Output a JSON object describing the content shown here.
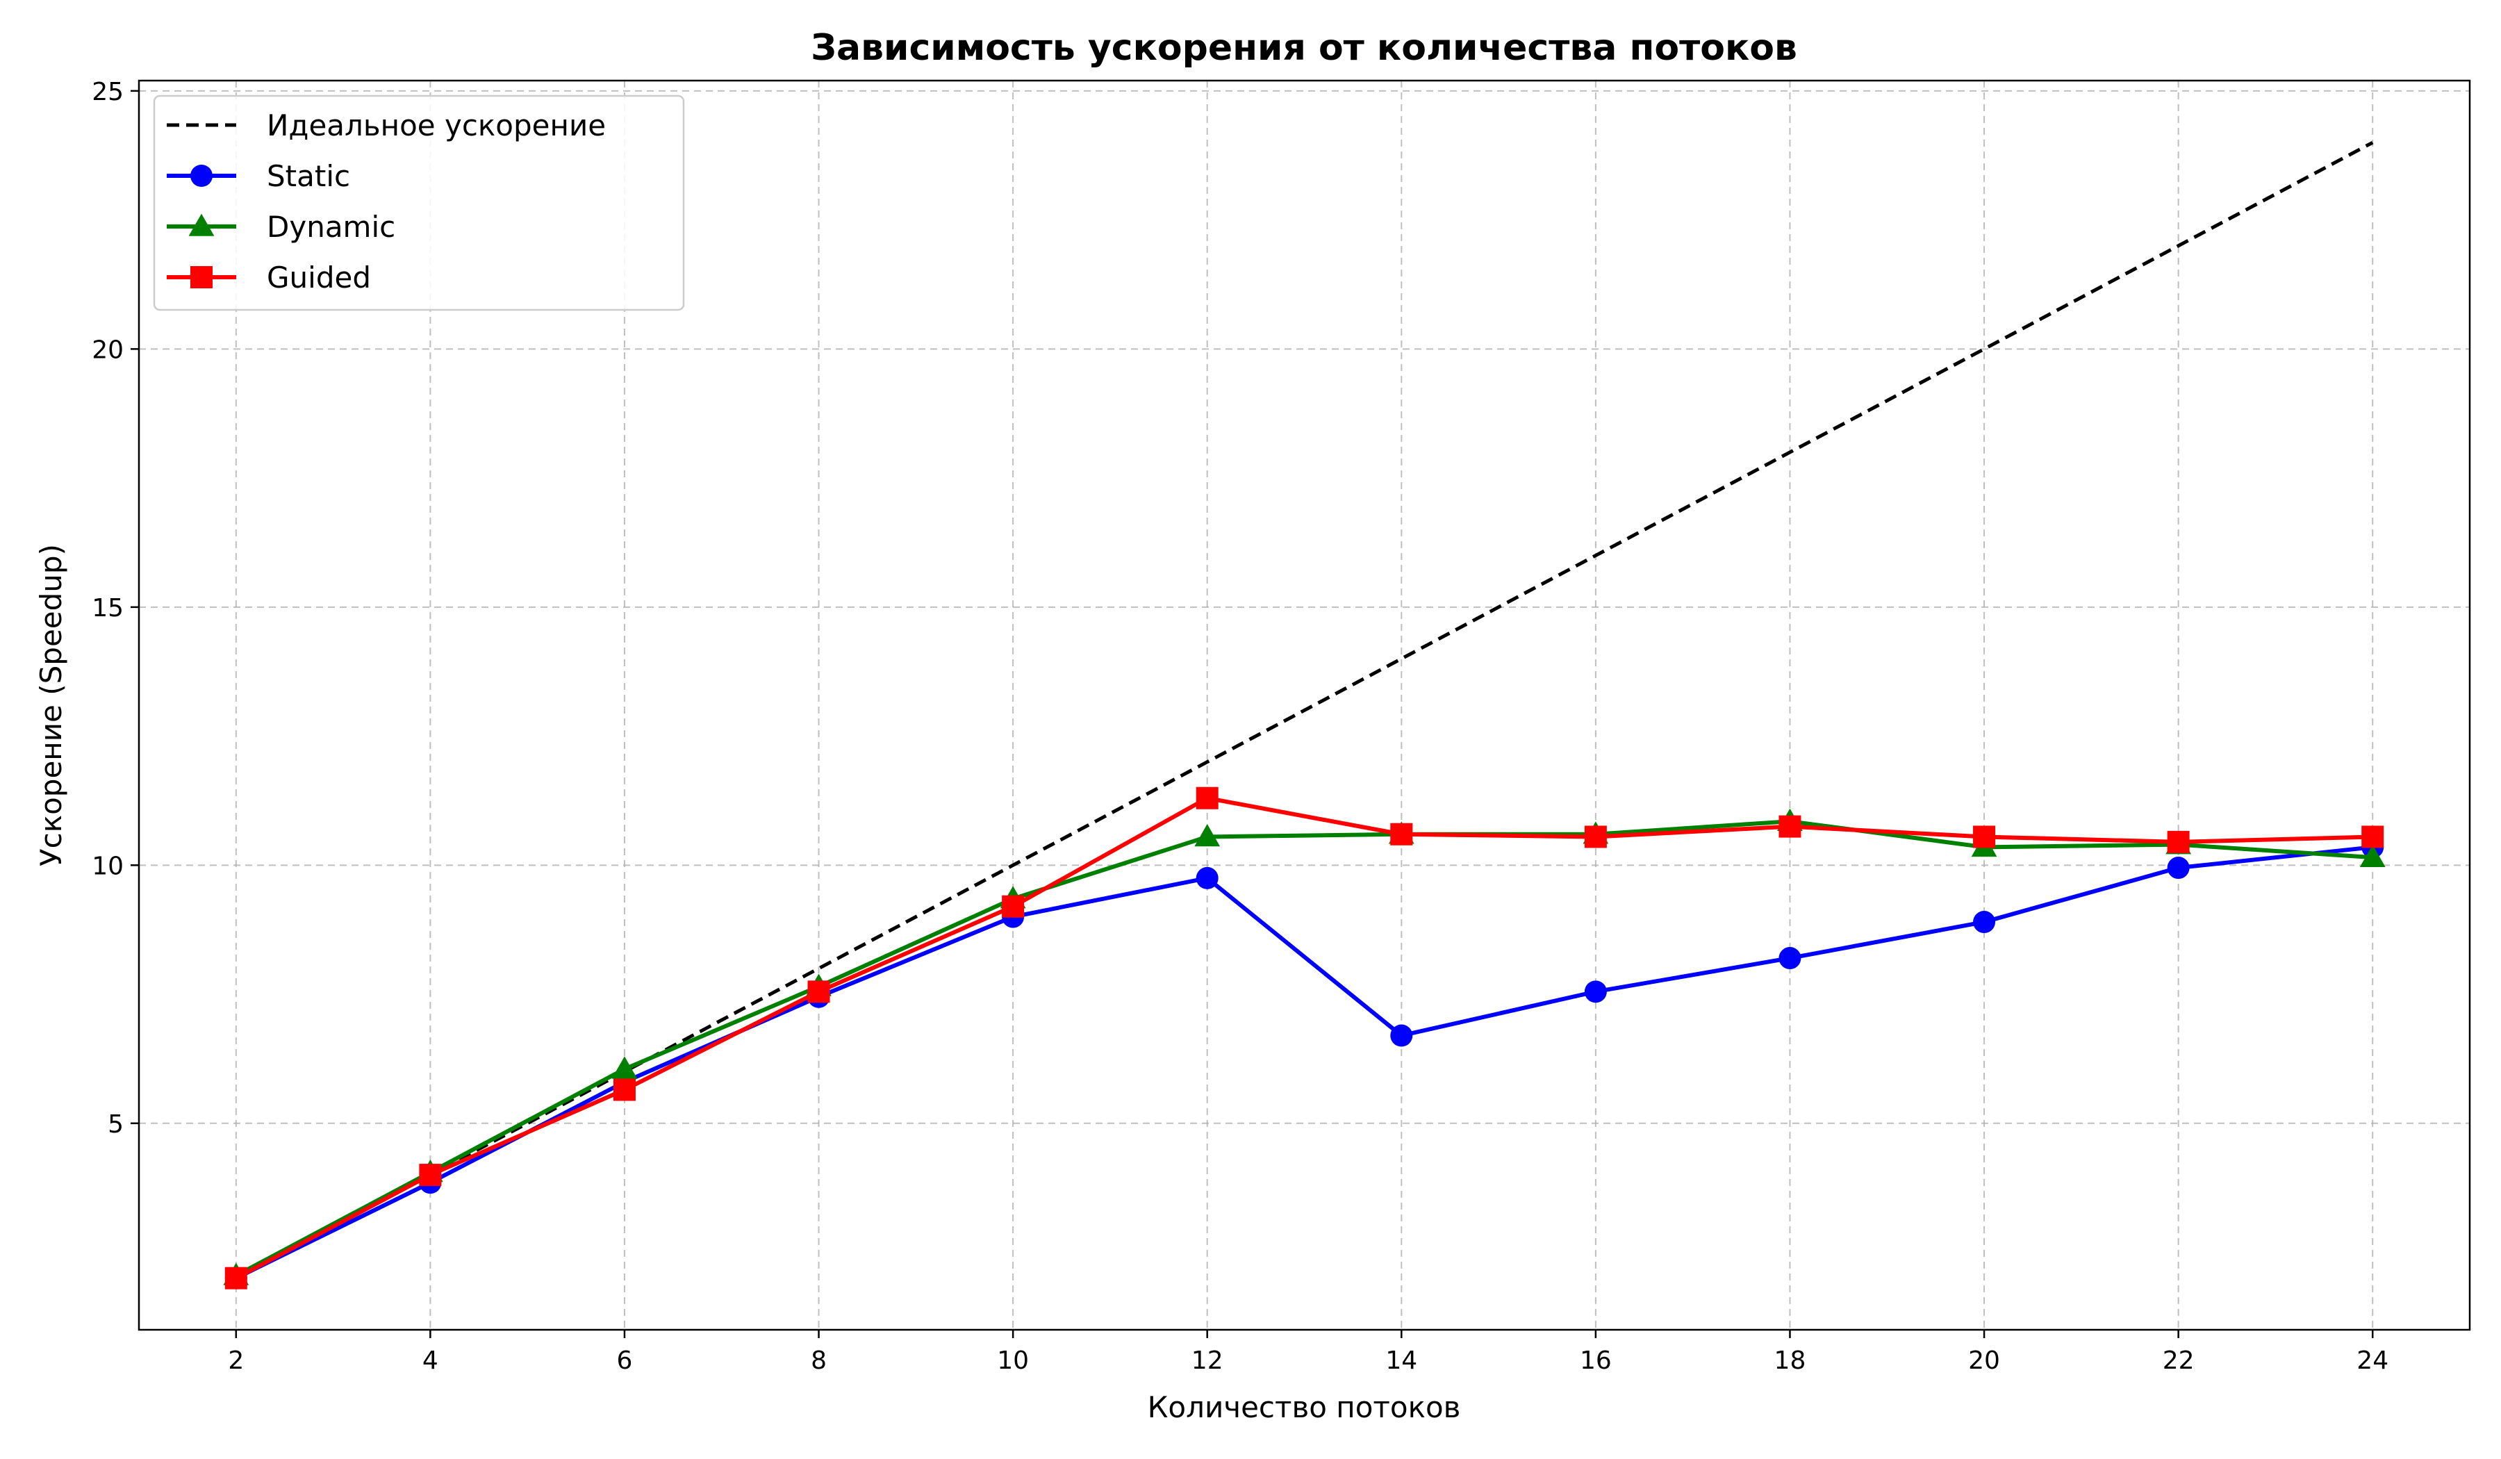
{
  "chart_data": {
    "type": "line",
    "title": "Зависимость ускорения от количества потоков",
    "xlabel": "Количество потоков",
    "ylabel": "Ускорение (Speedup)",
    "x": [
      2,
      4,
      6,
      8,
      10,
      12,
      14,
      16,
      18,
      20,
      22,
      24
    ],
    "xlim": [
      1,
      25
    ],
    "ylim": [
      1,
      25.2
    ],
    "xticks": [
      2,
      4,
      6,
      8,
      10,
      12,
      14,
      16,
      18,
      20,
      22,
      24
    ],
    "yticks": [
      5,
      10,
      15,
      20,
      25
    ],
    "grid": true,
    "legend_position": "top-left",
    "series": [
      {
        "name": "Идеальное ускорение",
        "style": "dashed",
        "marker": "none",
        "color": "#000000",
        "values": [
          2,
          4,
          6,
          8,
          10,
          12,
          14,
          16,
          18,
          20,
          22,
          24
        ]
      },
      {
        "name": "Static",
        "style": "solid",
        "marker": "circle",
        "color": "#0000ff",
        "values": [
          2.0,
          3.85,
          5.8,
          7.45,
          9.0,
          9.75,
          6.7,
          7.55,
          8.2,
          8.9,
          9.95,
          10.35
        ]
      },
      {
        "name": "Dynamic",
        "style": "solid",
        "marker": "triangle",
        "color": "#008000",
        "values": [
          2.05,
          4.05,
          6.05,
          7.65,
          9.35,
          10.55,
          10.6,
          10.6,
          10.85,
          10.35,
          10.4,
          10.15
        ]
      },
      {
        "name": "Guided",
        "style": "solid",
        "marker": "square",
        "color": "#ff0000",
        "values": [
          2.0,
          4.0,
          5.65,
          7.55,
          9.2,
          11.3,
          10.6,
          10.55,
          10.75,
          10.55,
          10.45,
          10.55
        ]
      }
    ]
  }
}
